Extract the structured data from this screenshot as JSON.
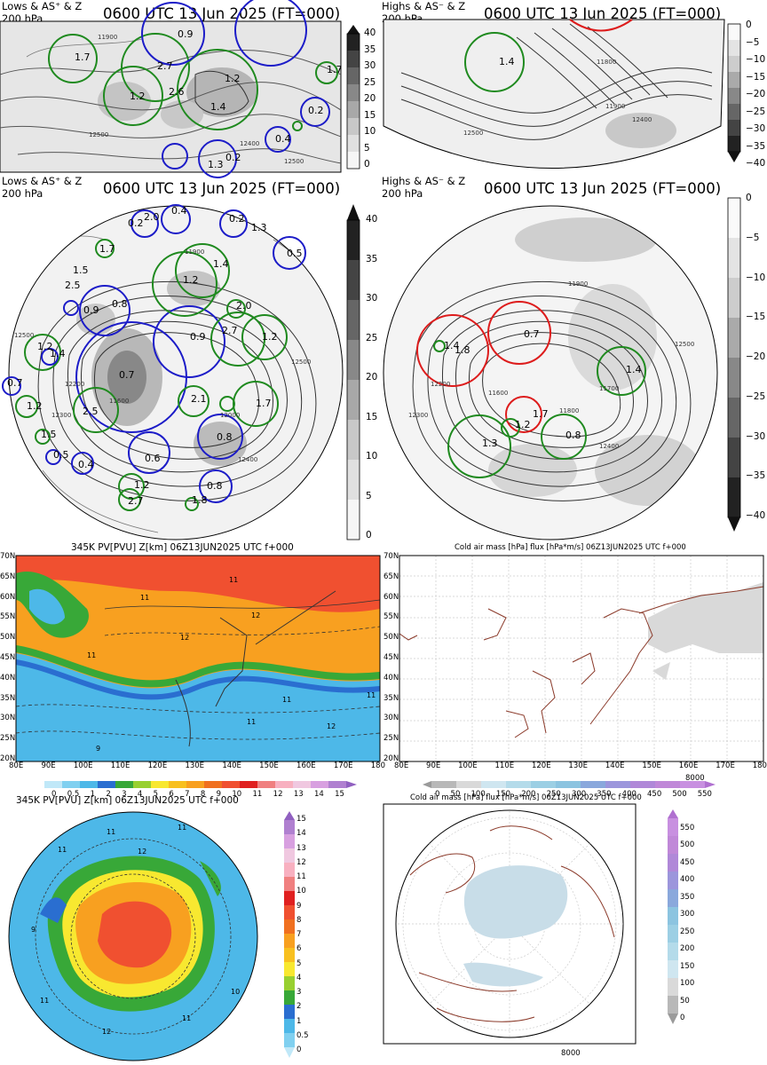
{
  "panels": {
    "p1": {
      "label_line1": "Lows & AS⁺ & Z",
      "label_line2": "200 hPa",
      "title": "0600 UTC 13 Jun 2025 (FT=000)"
    },
    "p2": {
      "label_line1": "Highs & AS⁻ & Z",
      "label_line2": "200 hPa",
      "title": "0600 UTC 13 Jun 2025 (FT=000)"
    },
    "p3": {
      "label_line1": "Lows & AS⁺ & Z",
      "label_line2": "200 hPa",
      "title": "0600 UTC 13 Jun 2025 (FT=000)"
    },
    "p4": {
      "label_line1": "Highs & AS⁻ & Z",
      "label_line2": "200 hPa",
      "title": "0600 UTC 13 Jun 2025 (FT=000)"
    },
    "p5": {
      "title": "345K PV[PVU] Z[km] 06Z13JUN2025 UTC f+000"
    },
    "p6": {
      "title": "Cold air mass [hPa] flux [hPa*m/s] 06Z13JUN2025 UTC f+000"
    },
    "p7": {
      "title": "345K PV[PVU] Z[km] 06Z13JUN2025 UTC f+000"
    },
    "p8": {
      "title": "Cold air mass [hPa] flux [hPa*m/s] 06Z13JUN2025 UTC f+000"
    }
  },
  "colorbars": {
    "lows_top": [
      "40",
      "35",
      "30",
      "25",
      "20",
      "15",
      "10",
      "5",
      "0"
    ],
    "highs_top": [
      "0",
      "−5",
      "−10",
      "−15",
      "−20",
      "−25",
      "−30",
      "−35",
      "−40"
    ],
    "lows_mid": [
      "40",
      "35",
      "30",
      "25",
      "20",
      "15",
      "10",
      "5",
      "0"
    ],
    "highs_mid": [
      "0",
      "−5",
      "−10",
      "−15",
      "−20",
      "−25",
      "−30",
      "−35",
      "−40"
    ],
    "pv_h": [
      "0",
      "0.5",
      "1",
      "2",
      "3",
      "4",
      "5",
      "6",
      "7",
      "8",
      "9",
      "10",
      "11",
      "12",
      "13",
      "14",
      "15"
    ],
    "cold_h": [
      "0",
      "50",
      "100",
      "150",
      "200",
      "250",
      "300",
      "350",
      "400",
      "450",
      "500",
      "550"
    ],
    "pv_v": [
      "15",
      "14",
      "13",
      "12",
      "11",
      "10",
      "9",
      "8",
      "7",
      "6",
      "5",
      "4",
      "3",
      "2",
      "1",
      "0.5",
      "0"
    ],
    "cold_v": [
      "550",
      "500",
      "450",
      "400",
      "350",
      "300",
      "250",
      "200",
      "150",
      "100",
      "50",
      "0"
    ],
    "ref_vector": "8000"
  },
  "map_axes": {
    "lat": [
      "70N",
      "65N",
      "60N",
      "55N",
      "50N",
      "45N",
      "40N",
      "35N",
      "30N",
      "25N",
      "20N"
    ],
    "lon": [
      "80E",
      "90E",
      "100E",
      "110E",
      "120E",
      "130E",
      "140E",
      "150E",
      "160E",
      "170E",
      "180"
    ]
  },
  "centers": {
    "p1": [
      "1.7",
      "2.7",
      "0.9",
      "1.2",
      "2.6",
      "1.2",
      "1.4",
      "1.7",
      "0.2",
      "0.4",
      "0.2",
      "1.3"
    ],
    "p2": [
      "1.4"
    ],
    "p3": [
      "0.2",
      "2.0",
      "0.4",
      "0.2",
      "1.3",
      "0.5",
      "1.7",
      "1.4",
      "1.5",
      "2.5",
      "1.2",
      "0.9",
      "0.8",
      "2.0",
      "0.9",
      "2.7",
      "1.2",
      "1.2",
      "1.4",
      "0.7",
      "0.7",
      "2.1",
      "1.7",
      "1.2",
      "2.5",
      "1.5",
      "0.5",
      "0.4",
      "0.6",
      "0.8",
      "1.2",
      "0.8",
      "1.8",
      "2.7"
    ],
    "p4": [
      "1.4",
      "1.8",
      "0.7",
      "1.4",
      "1.7",
      "1.2",
      "1.3",
      "0.8"
    ]
  },
  "contours": {
    "p1": [
      "12500",
      "11900",
      "12400",
      "12500"
    ],
    "p2": [
      "11800",
      "11900",
      "12400",
      "12500"
    ],
    "p3": [
      "11900",
      "12000",
      "12200",
      "12300",
      "11600",
      "12400",
      "12500",
      "12500"
    ],
    "p4": [
      "11900",
      "11700",
      "11600",
      "12200",
      "12300",
      "12400",
      "12500",
      "11800"
    ],
    "p5": [
      "11",
      "11",
      "12",
      "12",
      "11",
      "11",
      "9",
      "11",
      "12",
      "11"
    ],
    "p7": [
      "11",
      "11",
      "11",
      "12",
      "9",
      "10",
      "11",
      "12",
      "11"
    ]
  },
  "colors": {
    "low_circle": "#1c1cc8",
    "low_green": "#1f8a1f",
    "high_circle": "#dd1c1c",
    "coast": "#8b3a2a"
  }
}
